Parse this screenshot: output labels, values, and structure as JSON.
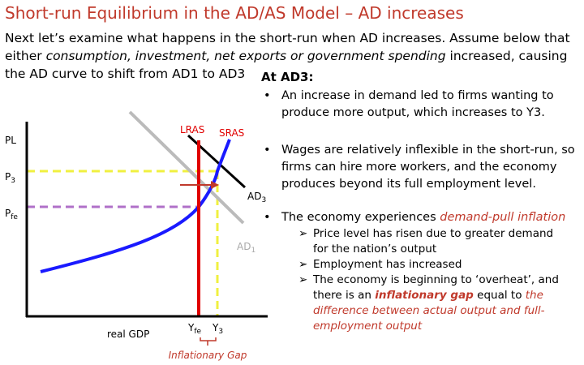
{
  "title": "Short-run Equilibrium in the AD/AS Model – AD increases",
  "intro": [
    "Next let’s examine what happens in the short-run when AD increases. Assume below that either ",
    "consumption, investment, net exports or government spending",
    " increased, causing the AD curve to shift from AD1 to AD3"
  ],
  "heading": "At AD3:",
  "bullets": [
    {
      "text": [
        "An increase in demand led to firms wanting to produce more output, which increases to Y3."
      ]
    },
    {
      "text": [
        "Wages are relatively inflexible in the short-run, so firms can hire more workers, and the economy produces beyond its full employment level."
      ]
    },
    {
      "text": [
        "The economy experiences ",
        "demand-pull inflation"
      ],
      "subs": [
        [
          "Price level has risen due to greater demand for the nation’s output"
        ],
        [
          "Employment has increased"
        ],
        [
          "The economy is beginning to ‘overheat’, and there is an ",
          "inflationary gap",
          " equal to ",
          "the difference between actual output and full-employment output"
        ]
      ]
    }
  ],
  "diagram": {
    "y_axis": "PL",
    "x_axis": "real GDP",
    "p3": {
      "main": "P",
      "sub": "3"
    },
    "pfe": {
      "main": "P",
      "sub": "fe"
    },
    "lras": "LRAS",
    "sras": "SRAS",
    "ad3": {
      "main": "AD",
      "sub": "3"
    },
    "ad1": {
      "main": "AD",
      "sub": "1"
    },
    "yfe": {
      "main": "Y",
      "sub": "fe"
    },
    "y3": {
      "main": "Y",
      "sub": "3"
    },
    "gap": "Inflationary Gap"
  }
}
